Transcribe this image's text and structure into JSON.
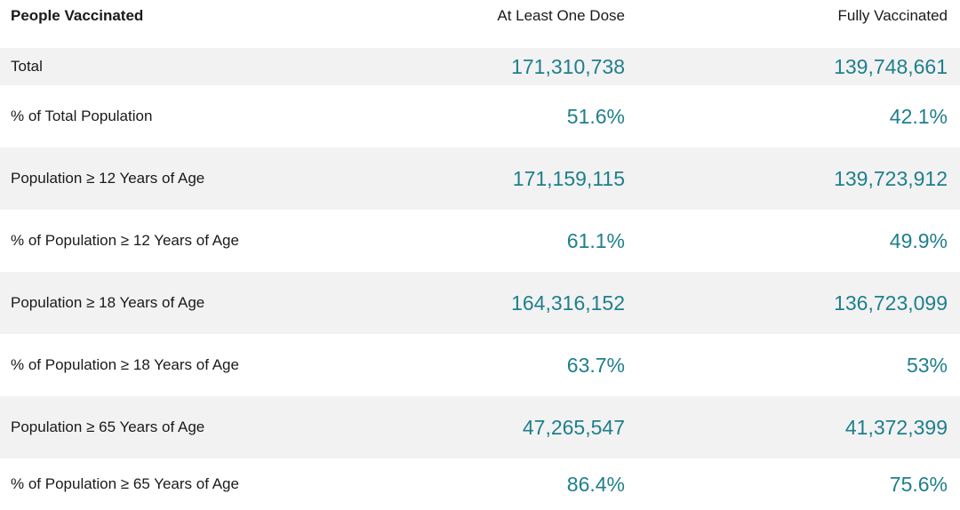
{
  "table": {
    "headers": {
      "label": "People Vaccinated",
      "dose": "At Least One Dose",
      "full": "Fully Vaccinated"
    },
    "rows": [
      {
        "label": "Total",
        "dose": "171,310,738",
        "full": "139,748,661"
      },
      {
        "label": "% of Total Population",
        "dose": "51.6%",
        "full": "42.1%"
      },
      {
        "label": "Population ≥ 12 Years of Age",
        "dose": "171,159,115",
        "full": "139,723,912"
      },
      {
        "label": "% of Population ≥ 12 Years of Age",
        "dose": "61.1%",
        "full": "49.9%"
      },
      {
        "label": "Population ≥ 18 Years of Age",
        "dose": "164,316,152",
        "full": "136,723,099"
      },
      {
        "label": "% of Population ≥ 18 Years of Age",
        "dose": "63.7%",
        "full": "53%"
      },
      {
        "label": "Population ≥ 65 Years of Age",
        "dose": "47,265,547",
        "full": "41,372,399"
      },
      {
        "label": "% of Population ≥ 65 Years of Age",
        "dose": "86.4%",
        "full": "75.6%"
      }
    ]
  },
  "colors": {
    "value": "#1f7f8c",
    "shaded_row": "#f2f2f2",
    "text": "#1a1a1a"
  }
}
